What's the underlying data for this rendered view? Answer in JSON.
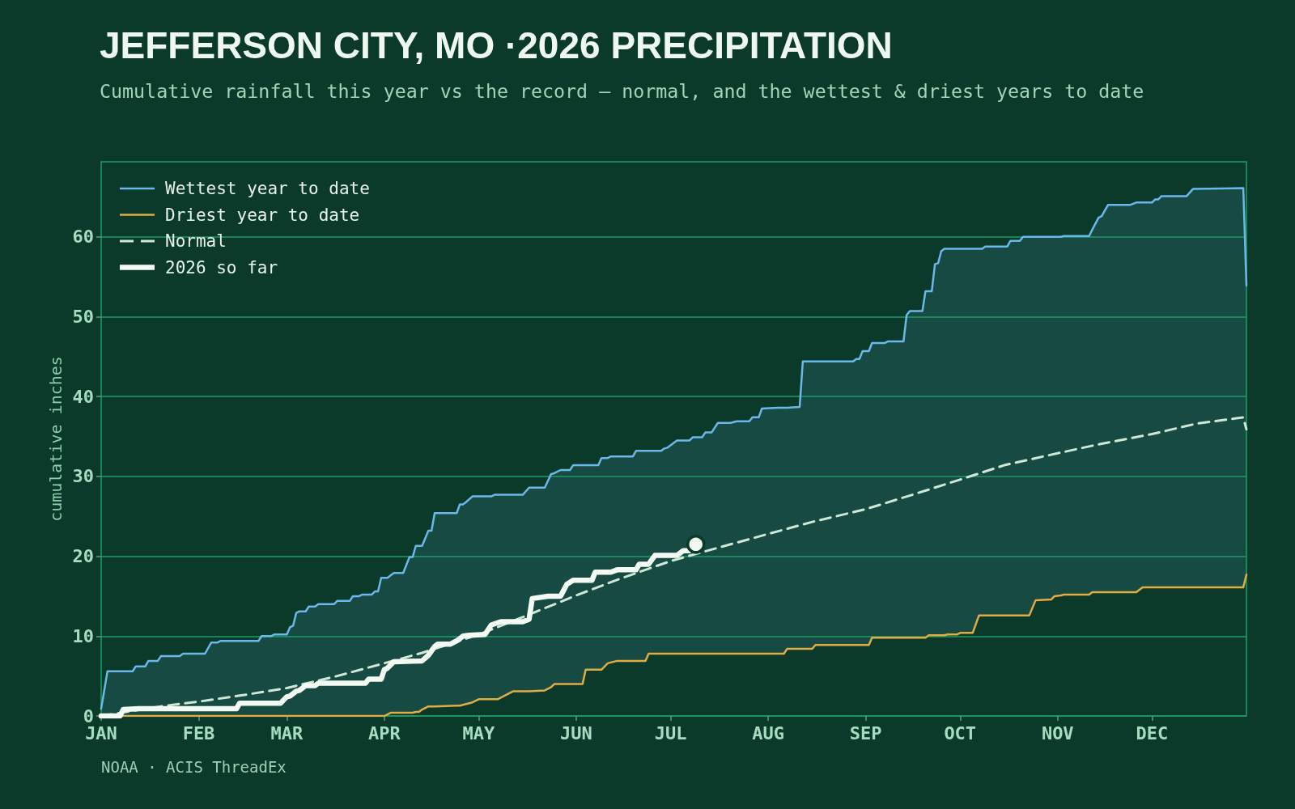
{
  "chart_data": {
    "type": "line",
    "title": "JEFFERSON CITY, MO ·2026 PRECIPITATION",
    "subtitle": "Cumulative rainfall this year vs the record — normal, and the wettest & driest years to date",
    "ylabel": "cumulative inches",
    "annotations": [
      "NOAA · ACIS ThreadEx"
    ],
    "x": [
      "2026-01-01",
      "2026-01-03",
      "2026-01-11",
      "2026-01-12",
      "2026-01-15",
      "2026-01-16",
      "2026-01-19",
      "2026-01-20",
      "2026-01-26",
      "2026-01-27",
      "2026-02-03",
      "2026-02-05",
      "2026-02-07",
      "2026-02-08",
      "2026-02-20",
      "2026-02-21",
      "2026-02-24",
      "2026-02-25",
      "2026-03-01",
      "2026-03-02",
      "2026-03-03",
      "2026-03-04",
      "2026-03-05",
      "2026-03-07",
      "2026-03-08",
      "2026-03-10",
      "2026-03-11",
      "2026-03-16",
      "2026-03-17",
      "2026-03-21",
      "2026-03-22",
      "2026-03-24",
      "2026-03-25",
      "2026-03-28",
      "2026-03-29",
      "2026-03-30",
      "2026-03-31",
      "2026-04-01",
      "2026-04-02",
      "2026-04-03",
      "2026-04-04",
      "2026-04-07",
      "2026-04-09",
      "2026-04-10",
      "2026-04-11",
      "2026-04-12",
      "2026-04-13",
      "2026-04-15",
      "2026-04-16",
      "2026-04-17",
      "2026-04-24",
      "2026-04-25",
      "2026-04-26",
      "2026-04-27",
      "2026-04-29",
      "2026-05-01",
      "2026-05-05",
      "2026-05-06",
      "2026-05-07",
      "2026-05-10",
      "2026-05-12",
      "2026-05-15",
      "2026-05-17",
      "2026-05-22",
      "2026-05-24",
      "2026-05-25",
      "2026-05-27",
      "2026-05-30",
      "2026-05-31",
      "2026-06-03",
      "2026-06-04",
      "2026-06-08",
      "2026-06-09",
      "2026-06-11",
      "2026-06-12",
      "2026-06-14",
      "2026-06-19",
      "2026-06-20",
      "2026-06-23",
      "2026-06-24",
      "2026-06-28",
      "2026-06-29",
      "2026-06-30",
      "2026-07-03",
      "2026-07-07",
      "2026-07-08",
      "2026-07-11",
      "2026-07-12",
      "2026-07-14",
      "2026-07-16",
      "2026-07-20",
      "2026-07-22",
      "2026-07-26",
      "2026-07-27",
      "2026-07-29",
      "2026-07-30",
      "2026-08-04",
      "2026-08-06",
      "2026-08-07",
      "2026-08-11",
      "2026-08-12",
      "2026-08-15",
      "2026-08-16",
      "2026-08-28",
      "2026-08-29",
      "2026-08-30",
      "2026-08-31",
      "2026-09-02",
      "2026-09-03",
      "2026-09-07",
      "2026-09-08",
      "2026-09-13",
      "2026-09-14",
      "2026-09-15",
      "2026-09-19",
      "2026-09-20",
      "2026-09-21",
      "2026-09-22",
      "2026-09-23",
      "2026-09-24",
      "2026-09-25",
      "2026-09-26",
      "2026-09-27",
      "2026-09-30",
      "2026-10-01",
      "2026-10-05",
      "2026-10-07",
      "2026-10-08",
      "2026-10-09",
      "2026-10-16",
      "2026-10-17",
      "2026-10-20",
      "2026-10-21",
      "2026-10-23",
      "2026-10-25",
      "2026-10-30",
      "2026-10-31",
      "2026-11-02",
      "2026-11-03",
      "2026-11-11",
      "2026-11-12",
      "2026-11-14",
      "2026-11-15",
      "2026-11-17",
      "2026-11-24",
      "2026-11-26",
      "2026-11-28",
      "2026-12-01",
      "2026-12-02",
      "2026-12-03",
      "2026-12-04",
      "2026-12-12",
      "2026-12-14",
      "2026-12-30",
      "2026-12-31"
    ],
    "series": [
      {
        "name": "Wettest year to date",
        "color": "#6cb8ea",
        "values": [
          0.9,
          5.6,
          5.6,
          6.2,
          6.2,
          6.9,
          6.9,
          7.5,
          7.5,
          7.8,
          7.8,
          9.2,
          9.2,
          9.4,
          9.4,
          10.0,
          10.0,
          10.2,
          10.2,
          11.1,
          11.3,
          12.9,
          13.1,
          13.1,
          13.7,
          13.7,
          14.0,
          14.0,
          14.4,
          14.4,
          15.0,
          15.0,
          15.2,
          15.2,
          15.6,
          15.6,
          17.3,
          17.3,
          17.3,
          17.6,
          17.9,
          17.9,
          19.9,
          19.9,
          21.3,
          21.3,
          21.3,
          23.2,
          23.2,
          25.4,
          25.4,
          26.5,
          26.5,
          26.8,
          27.5,
          27.5,
          27.5,
          27.7,
          27.7,
          27.7,
          27.7,
          27.7,
          28.6,
          28.6,
          30.3,
          30.4,
          30.8,
          30.8,
          31.4,
          31.4,
          31.4,
          31.4,
          32.3,
          32.3,
          32.5,
          32.5,
          32.5,
          33.2,
          33.2,
          33.2,
          33.2,
          33.5,
          33.6,
          34.5,
          34.5,
          34.9,
          34.9,
          35.5,
          35.5,
          36.7,
          36.7,
          36.9,
          36.9,
          37.4,
          37.4,
          38.5,
          38.6,
          38.6,
          38.6,
          38.7,
          44.4,
          44.4,
          44.4,
          44.4,
          44.7,
          44.7,
          45.7,
          45.7,
          46.7,
          46.7,
          46.9,
          46.9,
          50.2,
          50.7,
          50.7,
          53.2,
          53.2,
          53.2,
          56.6,
          56.7,
          58.2,
          58.5,
          58.5,
          58.5,
          58.5,
          58.5,
          58.5,
          58.5,
          58.8,
          58.8,
          59.5,
          59.5,
          60.0,
          60.0,
          60.0,
          60.0,
          60.0,
          60.0,
          60.1,
          60.1,
          60.9,
          62.4,
          62.6,
          64.0,
          64.0,
          64.3,
          64.3,
          64.3,
          64.7,
          64.7,
          65.1,
          65.1,
          66.0,
          66.1,
          53.9
        ],
        "upper": [
          0.9,
          5.6,
          5.6,
          6.2,
          6.2,
          6.9,
          6.9,
          7.5,
          7.5,
          7.8,
          7.8,
          9.2,
          9.2,
          9.4,
          9.4,
          10.0,
          10.0,
          10.2,
          10.2,
          11.1,
          11.3,
          12.9,
          13.1,
          13.1,
          13.7,
          13.7,
          14.0,
          14.0,
          14.4,
          14.4,
          15.0,
          15.0,
          15.2,
          15.2,
          15.6,
          15.6,
          17.3,
          17.3,
          17.3,
          17.6,
          17.9,
          17.9,
          19.9,
          19.9,
          21.3,
          21.3,
          21.3,
          23.2,
          23.2,
          25.4,
          25.4,
          26.5,
          26.5,
          26.8,
          27.5,
          27.5,
          27.5,
          27.7,
          27.7,
          27.7,
          27.7,
          27.7,
          28.6,
          28.6,
          30.3,
          30.4,
          30.8,
          30.8,
          31.4,
          31.4,
          31.4,
          31.4,
          32.3,
          32.3,
          32.5,
          32.5,
          32.5,
          33.2,
          33.2,
          33.2,
          33.2,
          33.5,
          33.6,
          34.5,
          34.5,
          34.9,
          34.9,
          35.5,
          35.5,
          36.7,
          36.7,
          36.9,
          36.9,
          37.4,
          37.4,
          38.5,
          38.6,
          38.6,
          38.6,
          38.7,
          44.4,
          44.4,
          44.4,
          44.4,
          44.7,
          44.7,
          45.7,
          45.7,
          46.7,
          46.7,
          46.9,
          46.9,
          50.2,
          50.7,
          50.7,
          53.2,
          53.2,
          53.2,
          56.6,
          56.7,
          58.2,
          58.5,
          58.5,
          58.5,
          58.5,
          58.5,
          58.5,
          58.5,
          58.8,
          58.8,
          59.5,
          59.5,
          60.0,
          60.0,
          60.0,
          60.0,
          60.0,
          60.0,
          60.1,
          60.1,
          60.9,
          62.4,
          62.6,
          64.0,
          64.0,
          64.3,
          64.3,
          64.3,
          64.7,
          64.7,
          65.1,
          65.1,
          66.0,
          66.1,
          53.9
        ],
        "lower": [
          0,
          0,
          0,
          0,
          0,
          0,
          0,
          0,
          0,
          0,
          0,
          0,
          0,
          0,
          0,
          0,
          0,
          0,
          0,
          0,
          0,
          0,
          0,
          0,
          0,
          0,
          0,
          0,
          0,
          0,
          0,
          0,
          0,
          0,
          0,
          0,
          0,
          0,
          0.2,
          0.4,
          0.4,
          0.4,
          0.4,
          0.4,
          0.5,
          0.5,
          0.8,
          1.2,
          1.2,
          1.2,
          1.3,
          1.3,
          1.4,
          1.5,
          1.7,
          2.1,
          2.1,
          2.1,
          2.1,
          2.7,
          3.1,
          3.1,
          3.1,
          3.2,
          3.6,
          4.0,
          4.0,
          4.0,
          4.0,
          4.0,
          5.8,
          5.8,
          5.8,
          6.6,
          6.7,
          6.9,
          6.9,
          6.9,
          6.9,
          7.8,
          7.8,
          7.8,
          7.8,
          7.8,
          7.8,
          7.8,
          7.8,
          7.8,
          7.8,
          7.8,
          7.8,
          7.8,
          7.8,
          7.8,
          7.8,
          7.8,
          7.8,
          7.8,
          8.4,
          8.4,
          8.4,
          8.4,
          8.9,
          8.9,
          8.9,
          8.9,
          8.9,
          8.9,
          9.8,
          9.8,
          9.8,
          9.8,
          9.8,
          9.8,
          9.8,
          9.8,
          10.1,
          10.1,
          10.1,
          10.1,
          10.1,
          10.1,
          10.2,
          10.2,
          10.4,
          10.4,
          12.6,
          12.6,
          12.6,
          12.6,
          12.6,
          12.6,
          12.6,
          12.6,
          14.5,
          14.6,
          15.0,
          15.1,
          15.2,
          15.2,
          15.5,
          15.5,
          15.5,
          15.5,
          15.5,
          15.5,
          16.1,
          16.1,
          16.1,
          16.1,
          16.1,
          16.1,
          16.1,
          16.1,
          17.7
        ]
      },
      {
        "name": "Driest year to date",
        "color": "#e2ac45",
        "values": [
          0,
          0,
          0,
          0,
          0,
          0,
          0,
          0,
          0,
          0,
          0,
          0,
          0,
          0,
          0,
          0,
          0,
          0,
          0,
          0,
          0,
          0,
          0,
          0,
          0,
          0,
          0,
          0,
          0,
          0,
          0,
          0,
          0,
          0,
          0,
          0,
          0,
          0,
          0.2,
          0.4,
          0.4,
          0.4,
          0.4,
          0.4,
          0.5,
          0.5,
          0.8,
          1.2,
          1.2,
          1.2,
          1.3,
          1.3,
          1.4,
          1.5,
          1.7,
          2.1,
          2.1,
          2.1,
          2.1,
          2.7,
          3.1,
          3.1,
          3.1,
          3.2,
          3.6,
          4.0,
          4.0,
          4.0,
          4.0,
          4.0,
          5.8,
          5.8,
          5.8,
          6.6,
          6.7,
          6.9,
          6.9,
          6.9,
          6.9,
          7.8,
          7.8,
          7.8,
          7.8,
          7.8,
          7.8,
          7.8,
          7.8,
          7.8,
          7.8,
          7.8,
          7.8,
          7.8,
          7.8,
          7.8,
          7.8,
          7.8,
          7.8,
          7.8,
          8.4,
          8.4,
          8.4,
          8.4,
          8.9,
          8.9,
          8.9,
          8.9,
          8.9,
          8.9,
          9.8,
          9.8,
          9.8,
          9.8,
          9.8,
          9.8,
          9.8,
          9.8,
          10.1,
          10.1,
          10.1,
          10.1,
          10.1,
          10.1,
          10.2,
          10.2,
          10.4,
          10.4,
          12.6,
          12.6,
          12.6,
          12.6,
          12.6,
          12.6,
          12.6,
          12.6,
          14.5,
          14.6,
          15.0,
          15.1,
          15.2,
          15.2,
          15.5,
          15.5,
          15.5,
          15.5,
          15.5,
          15.5,
          16.1,
          16.1,
          16.1,
          16.1,
          16.1,
          16.1,
          16.1,
          16.1,
          17.7
        ]
      },
      {
        "name": "Normal",
        "color": "#cfe8d6",
        "line_style": "dashed",
        "x": [
          "2026-01-01",
          "2026-01-20",
          "2026-02-01",
          "2026-02-15",
          "2026-03-01",
          "2026-03-16",
          "2026-04-01",
          "2026-04-13",
          "2026-05-01",
          "2026-05-17",
          "2026-06-01",
          "2026-06-15",
          "2026-07-01",
          "2026-07-10",
          "2026-08-01",
          "2026-08-15",
          "2026-09-01",
          "2026-09-15",
          "2026-10-01",
          "2026-10-15",
          "2026-11-01",
          "2026-11-15",
          "2026-12-01",
          "2026-12-15",
          "2026-12-30",
          "2026-12-31"
        ],
        "values": [
          0,
          1.2,
          1.8,
          2.6,
          3.5,
          4.9,
          6.6,
          7.9,
          10.2,
          12.7,
          15.1,
          17.2,
          19.4,
          20.4,
          22.8,
          24.3,
          25.9,
          27.6,
          29.6,
          31.4,
          32.9,
          34.1,
          35.3,
          36.6,
          37.4,
          35.9
        ]
      },
      {
        "name": "2026 so far",
        "color": "#f2faf3",
        "x": [
          "2026-01-01",
          "2026-01-07",
          "2026-01-08",
          "2026-01-13",
          "2026-02-13",
          "2026-02-14",
          "2026-02-27",
          "2026-03-01",
          "2026-03-02",
          "2026-03-04",
          "2026-03-05",
          "2026-03-07",
          "2026-03-10",
          "2026-03-11",
          "2026-03-26",
          "2026-03-27",
          "2026-03-31",
          "2026-04-01",
          "2026-04-02",
          "2026-04-04",
          "2026-04-13",
          "2026-04-15",
          "2026-04-17",
          "2026-04-18",
          "2026-04-22",
          "2026-04-24",
          "2026-04-26",
          "2026-04-28",
          "2026-05-03",
          "2026-05-05",
          "2026-05-08",
          "2026-05-15",
          "2026-05-17",
          "2026-05-18",
          "2026-05-23",
          "2026-05-27",
          "2026-05-29",
          "2026-05-31",
          "2026-06-06",
          "2026-06-07",
          "2026-06-12",
          "2026-06-14",
          "2026-06-20",
          "2026-06-21",
          "2026-06-24",
          "2026-06-26",
          "2026-07-03",
          "2026-07-05",
          "2026-07-07",
          "2026-07-09"
        ],
        "values": [
          0,
          0,
          0.8,
          0.9,
          0.9,
          1.6,
          1.6,
          2.4,
          2.5,
          3.1,
          3.2,
          3.8,
          3.8,
          4.1,
          4.1,
          4.6,
          4.6,
          5.8,
          6.0,
          6.8,
          6.9,
          7.6,
          8.7,
          9.0,
          9.0,
          9.4,
          10.0,
          10.1,
          10.2,
          11.4,
          11.8,
          11.8,
          12.1,
          14.7,
          15.0,
          15.0,
          16.5,
          17.0,
          17.0,
          18.0,
          18.0,
          18.3,
          18.3,
          19.0,
          19.0,
          20.1,
          20.1,
          20.7,
          20.7,
          21.5
        ]
      },
      {
        "type": "scatter",
        "color": "#f2faf3",
        "marker": "circle",
        "x": [
          "2026-07-09"
        ],
        "values": [
          21.5
        ]
      }
    ],
    "xlim": [
      "2026-01-01",
      "2026-12-31"
    ],
    "xticks": [
      {
        "value": "2026-01-01",
        "label": "JAN"
      },
      {
        "value": "2026-02-01",
        "label": "FEB"
      },
      {
        "value": "2026-03-01",
        "label": "MAR"
      },
      {
        "value": "2026-04-01",
        "label": "APR"
      },
      {
        "value": "2026-05-01",
        "label": "MAY"
      },
      {
        "value": "2026-06-01",
        "label": "JUN"
      },
      {
        "value": "2026-07-01",
        "label": "JUL"
      },
      {
        "value": "2026-08-01",
        "label": "AUG"
      },
      {
        "value": "2026-09-01",
        "label": "SEP"
      },
      {
        "value": "2026-10-01",
        "label": "OCT"
      },
      {
        "value": "2026-11-01",
        "label": "NOV"
      },
      {
        "value": "2026-12-01",
        "label": "DEC"
      }
    ],
    "ylim": [
      0,
      69.4
    ],
    "yticks": [
      0,
      10,
      20,
      30,
      40,
      50,
      60
    ],
    "grid": "y",
    "legend": "top left",
    "marker": "none"
  }
}
